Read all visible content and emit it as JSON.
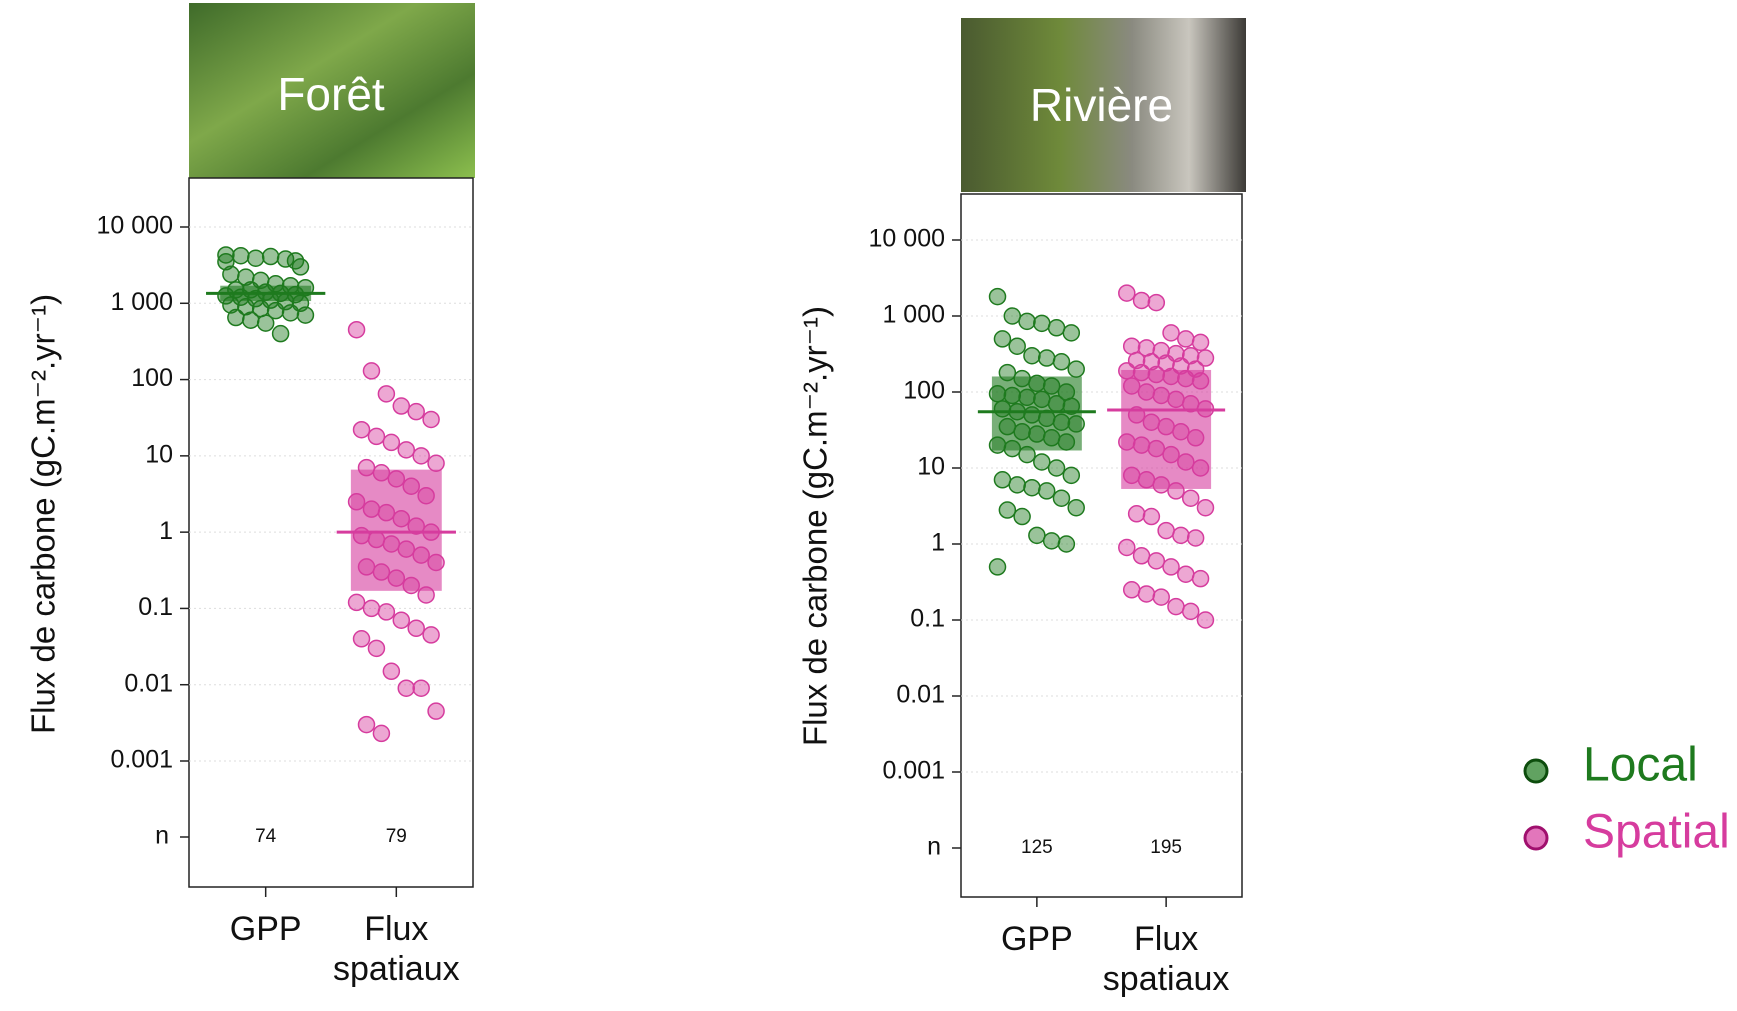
{
  "chart_data": [
    {
      "type": "strip",
      "title": "Forêt",
      "ylabel": "Flux de carbone  (gC.m⁻².yr⁻¹)",
      "yscale": "log",
      "ylim": [
        0.001,
        10000
      ],
      "yticks": [
        {
          "value": 10000,
          "label": "10 000"
        },
        {
          "value": 1000,
          "label": "1 000"
        },
        100,
        10,
        1,
        0.1,
        0.01,
        0.001
      ],
      "n_label": "n",
      "grid": true,
      "categories": [
        "GPP",
        "Flux spatiaux"
      ],
      "series": [
        {
          "name": "Local",
          "color": "#1e7a1e",
          "n": 74,
          "median": 1350,
          "q1": 1070,
          "q3": 1700,
          "values": [
            3500,
            4200,
            3900,
            4100,
            3800,
            3000,
            2400,
            2200,
            2000,
            1800,
            1700,
            1600,
            1500,
            1500,
            1400,
            1350,
            1300,
            1250,
            1200,
            1150,
            1100,
            1050,
            1000,
            950,
            900,
            850,
            800,
            750,
            700,
            650,
            600,
            550,
            400,
            3600,
            4300
          ]
        },
        {
          "name": "Spatial",
          "color": "#d63c9e",
          "n": 79,
          "median": 1,
          "q1": 0.17,
          "q3": 6.6,
          "values": [
            450,
            130,
            65,
            45,
            38,
            30,
            22,
            18,
            15,
            12,
            10,
            8,
            7,
            6,
            5,
            4,
            3,
            2.5,
            2,
            1.8,
            1.5,
            1.2,
            1,
            0.9,
            0.8,
            0.7,
            0.6,
            0.5,
            0.4,
            0.35,
            0.3,
            0.25,
            0.2,
            0.15,
            0.12,
            0.1,
            0.09,
            0.07,
            0.055,
            0.045,
            0.04,
            0.03,
            0.015,
            0.009,
            0.009,
            0.0045,
            0.003,
            0.0023
          ]
        }
      ]
    },
    {
      "type": "strip",
      "title": "Rivière",
      "ylabel": "Flux de carbone  (gC.m⁻².yr⁻¹)",
      "yscale": "log",
      "ylim": [
        0.001,
        10000
      ],
      "yticks": [
        {
          "value": 10000,
          "label": "10 000"
        },
        {
          "value": 1000,
          "label": "1 000"
        },
        100,
        10,
        1,
        0.1,
        0.01,
        0.001
      ],
      "n_label": "n",
      "grid": true,
      "categories": [
        "GPP",
        "Flux spatiaux"
      ],
      "series": [
        {
          "name": "Local",
          "color": "#1e7a1e",
          "n": 125,
          "median": 55,
          "q1": 17,
          "q3": 160,
          "values": [
            1800,
            1000,
            850,
            800,
            700,
            600,
            500,
            400,
            300,
            280,
            250,
            200,
            180,
            150,
            130,
            120,
            100,
            95,
            90,
            85,
            80,
            70,
            65,
            60,
            55,
            50,
            45,
            40,
            38,
            35,
            30,
            28,
            25,
            22,
            20,
            18,
            15,
            12,
            10,
            8,
            7,
            6,
            5.5,
            5,
            4,
            3,
            2.8,
            2.3,
            1.3,
            1.1,
            1,
            0.5
          ]
        },
        {
          "name": "Spatial",
          "color": "#d63c9e",
          "n": 195,
          "median": 58,
          "q1": 5.3,
          "q3": 195,
          "values": [
            2000,
            1600,
            1500,
            600,
            500,
            450,
            400,
            380,
            350,
            320,
            300,
            280,
            260,
            250,
            240,
            220,
            200,
            190,
            180,
            170,
            160,
            150,
            140,
            120,
            100,
            90,
            80,
            70,
            60,
            50,
            40,
            35,
            30,
            25,
            22,
            20,
            18,
            15,
            12,
            10,
            8,
            7,
            6,
            5,
            4,
            3,
            2.5,
            2.3,
            1.5,
            1.3,
            1.2,
            0.9,
            0.7,
            0.6,
            0.5,
            0.4,
            0.35,
            0.25,
            0.22,
            0.2,
            0.15,
            0.13,
            0.1
          ]
        }
      ]
    }
  ]
}
